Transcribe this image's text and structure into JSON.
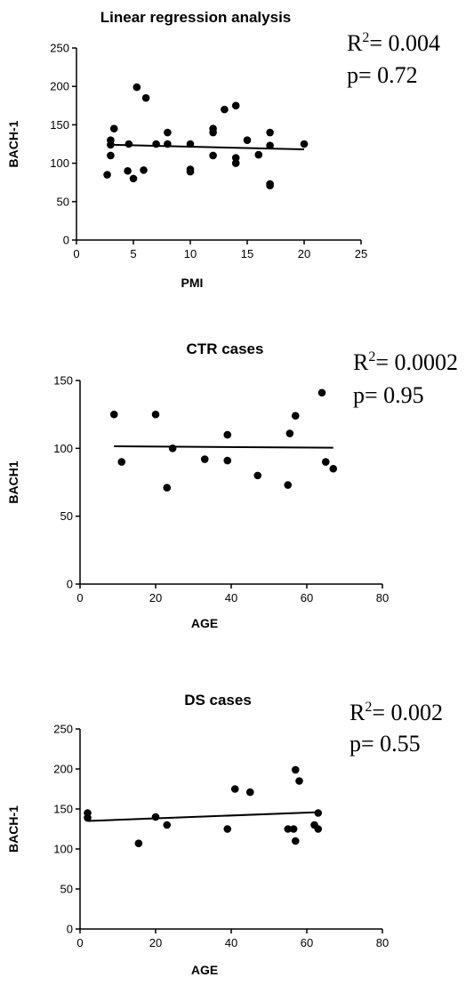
{
  "chart_data": [
    {
      "type": "scatter",
      "title": "Linear regression analysis",
      "xlabel": "PMI",
      "ylabel": "BACH-1",
      "xlim": [
        0,
        25
      ],
      "ylim": [
        0,
        250
      ],
      "xticks": [
        0,
        5,
        10,
        15,
        20,
        25
      ],
      "yticks": [
        0,
        50,
        100,
        150,
        200,
        250
      ],
      "stats": {
        "r2_prefix": "R",
        "r2_sup": "2",
        "r2_value": "= 0.004",
        "p": "p= 0.72"
      },
      "regression": {
        "x": [
          3,
          20
        ],
        "y": [
          124,
          118
        ]
      },
      "grid": false,
      "points": [
        {
          "x": 2.7,
          "y": 85
        },
        {
          "x": 3.0,
          "y": 130
        },
        {
          "x": 3.0,
          "y": 124
        },
        {
          "x": 3.0,
          "y": 110
        },
        {
          "x": 3.3,
          "y": 145
        },
        {
          "x": 4.5,
          "y": 90
        },
        {
          "x": 4.6,
          "y": 125
        },
        {
          "x": 5.0,
          "y": 80
        },
        {
          "x": 5.3,
          "y": 199
        },
        {
          "x": 5.9,
          "y": 91
        },
        {
          "x": 6.1,
          "y": 185
        },
        {
          "x": 7.0,
          "y": 125
        },
        {
          "x": 8.0,
          "y": 125
        },
        {
          "x": 8.0,
          "y": 140
        },
        {
          "x": 10.0,
          "y": 125
        },
        {
          "x": 10.0,
          "y": 92
        },
        {
          "x": 10.0,
          "y": 89
        },
        {
          "x": 12.0,
          "y": 145
        },
        {
          "x": 12.0,
          "y": 140
        },
        {
          "x": 12.0,
          "y": 110
        },
        {
          "x": 13.0,
          "y": 170
        },
        {
          "x": 14.0,
          "y": 175
        },
        {
          "x": 14.0,
          "y": 107
        },
        {
          "x": 14.0,
          "y": 100
        },
        {
          "x": 15.0,
          "y": 130
        },
        {
          "x": 16.0,
          "y": 111
        },
        {
          "x": 17.0,
          "y": 140
        },
        {
          "x": 17.0,
          "y": 123
        },
        {
          "x": 17.0,
          "y": 73
        },
        {
          "x": 17.0,
          "y": 71
        },
        {
          "x": 20.0,
          "y": 125
        }
      ]
    },
    {
      "type": "scatter",
      "title": "CTR cases",
      "xlabel": "AGE",
      "ylabel": "BACH1",
      "xlim": [
        0,
        80
      ],
      "ylim": [
        0,
        150
      ],
      "xticks": [
        0,
        20,
        40,
        60,
        80
      ],
      "yticks": [
        0,
        50,
        100,
        150
      ],
      "stats": {
        "r2_prefix": "R",
        "r2_sup": "2",
        "r2_value": "= 0.0002",
        "p": "p= 0.95"
      },
      "regression": {
        "x": [
          9,
          67
        ],
        "y": [
          101.5,
          100.5
        ]
      },
      "grid": false,
      "points": [
        {
          "x": 9,
          "y": 125
        },
        {
          "x": 11,
          "y": 90
        },
        {
          "x": 20,
          "y": 125
        },
        {
          "x": 23,
          "y": 71
        },
        {
          "x": 24.5,
          "y": 100
        },
        {
          "x": 33,
          "y": 92
        },
        {
          "x": 39,
          "y": 110
        },
        {
          "x": 39,
          "y": 91
        },
        {
          "x": 47,
          "y": 80
        },
        {
          "x": 55,
          "y": 73
        },
        {
          "x": 55.5,
          "y": 111
        },
        {
          "x": 57,
          "y": 124
        },
        {
          "x": 64,
          "y": 141
        },
        {
          "x": 65,
          "y": 90
        },
        {
          "x": 67,
          "y": 85
        }
      ]
    },
    {
      "type": "scatter",
      "title": "DS cases",
      "xlabel": "AGE",
      "ylabel": "BACH-1",
      "xlim": [
        0,
        80
      ],
      "ylim": [
        0,
        250
      ],
      "xticks": [
        0,
        20,
        40,
        60,
        80
      ],
      "yticks": [
        0,
        50,
        100,
        150,
        200,
        250
      ],
      "stats": {
        "r2_prefix": "R",
        "r2_sup": "2",
        "r2_value": "= 0.002",
        "p": "p= 0.55"
      },
      "regression": {
        "x": [
          2,
          63
        ],
        "y": [
          135,
          146
        ]
      },
      "grid": false,
      "points": [
        {
          "x": 2,
          "y": 145
        },
        {
          "x": 2,
          "y": 139
        },
        {
          "x": 15.5,
          "y": 107
        },
        {
          "x": 20,
          "y": 140
        },
        {
          "x": 23,
          "y": 130
        },
        {
          "x": 39,
          "y": 125
        },
        {
          "x": 41,
          "y": 175
        },
        {
          "x": 45,
          "y": 171
        },
        {
          "x": 55,
          "y": 125
        },
        {
          "x": 56.5,
          "y": 125
        },
        {
          "x": 57,
          "y": 199
        },
        {
          "x": 57,
          "y": 110
        },
        {
          "x": 58,
          "y": 185
        },
        {
          "x": 62,
          "y": 130
        },
        {
          "x": 63,
          "y": 145
        },
        {
          "x": 63,
          "y": 125
        }
      ]
    }
  ]
}
